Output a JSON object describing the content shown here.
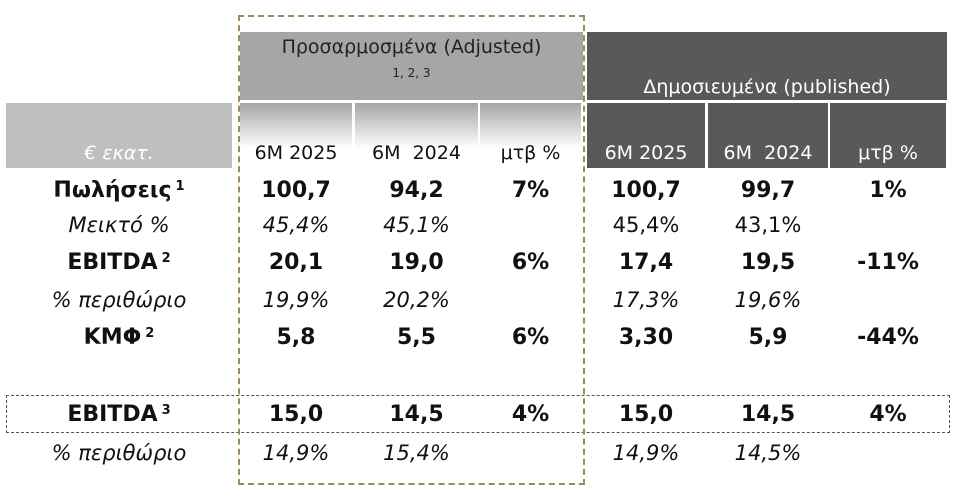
{
  "header": {
    "adjusted": "Προσαρμοσμένα (Adjusted)",
    "adjusted_notes": "1, 2, 3",
    "published": "Δημοσιευμένα (published)",
    "unit": "€ εκατ.",
    "columns": [
      "6M 2025",
      "6M  2024",
      "μτβ %",
      "6M 2025",
      "6M  2024",
      "μτβ %"
    ]
  },
  "table": {
    "rows": [
      {
        "label": "Πωλήσεις",
        "note": "1",
        "cells": [
          "100,7",
          "94,2",
          "7%",
          "100,7",
          "99,7",
          "1%"
        ]
      },
      {
        "label": "Μεικτό %",
        "cells": [
          "45,4%",
          "45,1%",
          null,
          "45,4%",
          "43,1%",
          null
        ]
      },
      {
        "label": "EBITDA",
        "note": "2",
        "cells": [
          "20,1",
          "19,0",
          "6%",
          "17,4",
          "19,5",
          "-11%"
        ]
      },
      {
        "label": "% περιθώριο",
        "cells": [
          "19,9%",
          "20,2%",
          null,
          "17,3%",
          "19,6%",
          null
        ]
      },
      {
        "label": "ΚΜΦ",
        "note": "2",
        "cells": [
          "5,8",
          "5,5",
          "6%",
          "3,30",
          "5,9",
          "-44%"
        ]
      },
      {
        "label": "EBITDA",
        "note": "3",
        "cells": [
          "15,0",
          "14,5",
          "4%",
          "15,0",
          "14,5",
          "4%"
        ]
      },
      {
        "label": "% περιθώριο",
        "cells": [
          "14,9%",
          "15,4%",
          null,
          "14,9%",
          "14,5%",
          null
        ]
      }
    ]
  }
}
